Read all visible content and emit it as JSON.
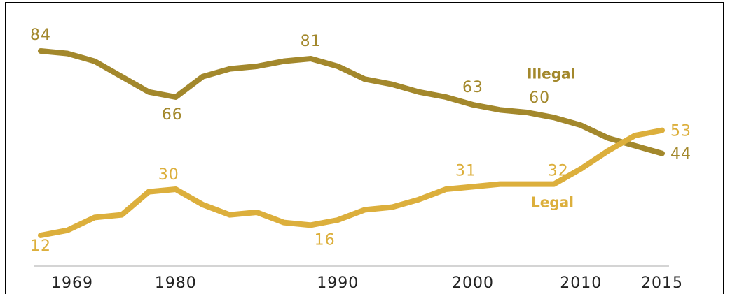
{
  "chart_data": {
    "type": "line",
    "categories": [
      "1969",
      null,
      null,
      null,
      null,
      "1980",
      null,
      null,
      null,
      null,
      null,
      "1990",
      null,
      null,
      null,
      null,
      "2000",
      null,
      null,
      null,
      "2010",
      null,
      null,
      "2015"
    ],
    "series": [
      {
        "name": "Illegal",
        "color": "#a3882c",
        "values": [
          84,
          83,
          80,
          74,
          68,
          66,
          74,
          77,
          78,
          80,
          81,
          78,
          73,
          71,
          68,
          66,
          63,
          61,
          60,
          58,
          55,
          50,
          47,
          44
        ],
        "labeled_points": [
          0,
          5,
          10,
          16,
          18,
          23
        ]
      },
      {
        "name": "Legal",
        "color": "#dcaf3c",
        "values": [
          12,
          14,
          19,
          20,
          29,
          30,
          24,
          20,
          21,
          17,
          16,
          18,
          22,
          23,
          26,
          30,
          31,
          32,
          32,
          32,
          38,
          45,
          51,
          53
        ],
        "labeled_points": [
          0,
          5,
          10,
          16,
          19,
          23
        ]
      }
    ],
    "ylim": [
      12,
      84
    ]
  }
}
